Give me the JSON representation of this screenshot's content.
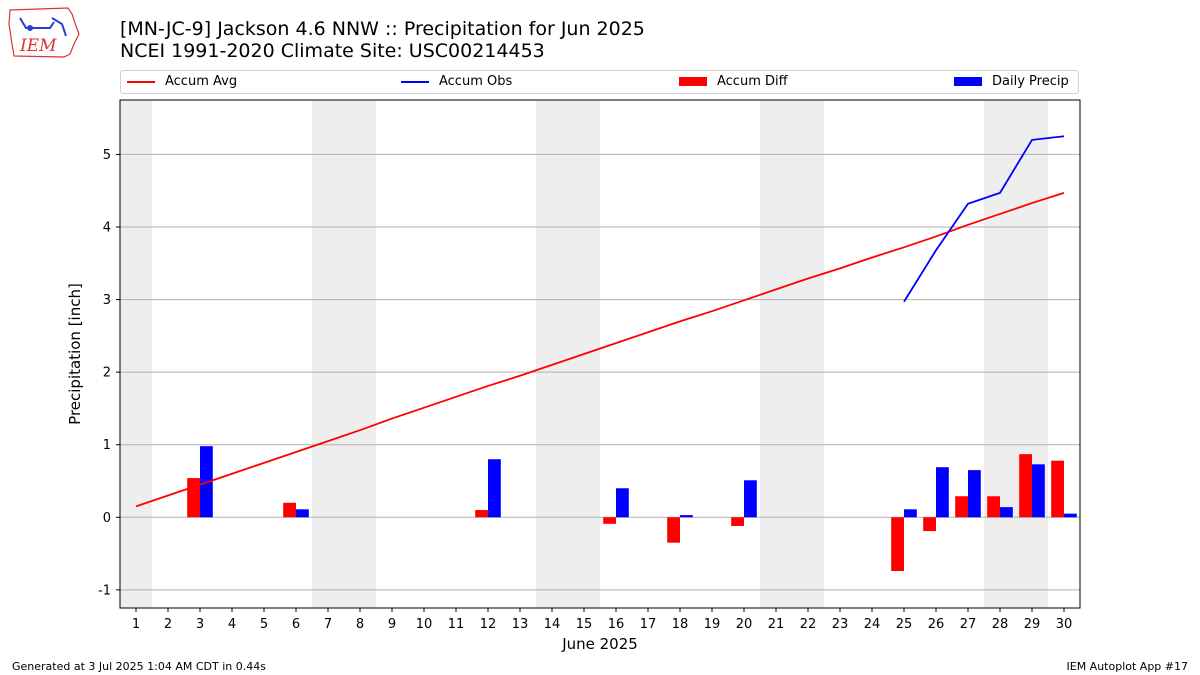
{
  "header": {
    "title_line1": "[MN-JC-9] Jackson 4.6 NNW :: Precipitation for Jun 2025",
    "title_line2": "NCEI 1991-2020 Climate Site: USC00214453"
  },
  "logo": {
    "text": "IEM",
    "icon": "iowa-state-map-logo"
  },
  "legend": {
    "accum_avg": "Accum Avg",
    "accum_obs": "Accum Obs",
    "accum_diff": "Accum Diff",
    "daily_precip": "Daily Precip"
  },
  "footer": {
    "left": "Generated at 3 Jul 2025 1:04 AM CDT in 0.44s",
    "right": "IEM Autoplot App #17"
  },
  "colors": {
    "avg": "#ff0000",
    "obs": "#0000ff",
    "diff": "#ff0000",
    "daily": "#0000ff",
    "weekend": "#eeeeee",
    "grid": "#b0b0b0"
  },
  "chart_data": {
    "type": "bar",
    "xlabel": "June 2025",
    "ylabel": "Precipitation [inch]",
    "ylim": [
      -1.25,
      5.75
    ],
    "yticks": [
      -1,
      0,
      1,
      2,
      3,
      4,
      5
    ],
    "xlim": [
      0.5,
      30.5
    ],
    "days": [
      1,
      2,
      3,
      4,
      5,
      6,
      7,
      8,
      9,
      10,
      11,
      12,
      13,
      14,
      15,
      16,
      17,
      18,
      19,
      20,
      21,
      22,
      23,
      24,
      25,
      26,
      27,
      28,
      29,
      30
    ],
    "weekend_bands": [
      [
        0.5,
        1.5
      ],
      [
        6.5,
        8.5
      ],
      [
        13.5,
        15.5
      ],
      [
        20.5,
        22.5
      ],
      [
        27.5,
        29.5
      ]
    ],
    "grid": "horizontal",
    "accum_avg": [
      0.15,
      0.3,
      0.45,
      0.6,
      0.75,
      0.9,
      1.05,
      1.2,
      1.36,
      1.51,
      1.66,
      1.81,
      1.95,
      2.1,
      2.25,
      2.4,
      2.55,
      2.7,
      2.84,
      2.99,
      3.14,
      3.29,
      3.43,
      3.58,
      3.72,
      3.87,
      4.03,
      4.18,
      4.33,
      4.47
    ],
    "accum_obs": {
      "days": [
        25,
        26,
        27,
        28,
        29,
        30
      ],
      "values": [
        2.97,
        3.68,
        4.32,
        4.47,
        5.2,
        5.25
      ]
    },
    "accum_diff": [
      {
        "day": 3,
        "value": 0.54
      },
      {
        "day": 6,
        "value": 0.2
      },
      {
        "day": 12,
        "value": 0.1
      },
      {
        "day": 16,
        "value": -0.09
      },
      {
        "day": 18,
        "value": -0.35
      },
      {
        "day": 20,
        "value": -0.12
      },
      {
        "day": 25,
        "value": -0.74
      },
      {
        "day": 26,
        "value": -0.19
      },
      {
        "day": 27,
        "value": 0.29
      },
      {
        "day": 28,
        "value": 0.29
      },
      {
        "day": 29,
        "value": 0.87
      },
      {
        "day": 30,
        "value": 0.78
      }
    ],
    "daily_precip": [
      {
        "day": 3,
        "value": 0.98
      },
      {
        "day": 6,
        "value": 0.11
      },
      {
        "day": 12,
        "value": 0.8
      },
      {
        "day": 16,
        "value": 0.4
      },
      {
        "day": 18,
        "value": 0.03
      },
      {
        "day": 20,
        "value": 0.51
      },
      {
        "day": 25,
        "value": 0.11
      },
      {
        "day": 26,
        "value": 0.69
      },
      {
        "day": 27,
        "value": 0.65
      },
      {
        "day": 28,
        "value": 0.14
      },
      {
        "day": 29,
        "value": 0.73
      },
      {
        "day": 30,
        "value": 0.05
      }
    ]
  }
}
